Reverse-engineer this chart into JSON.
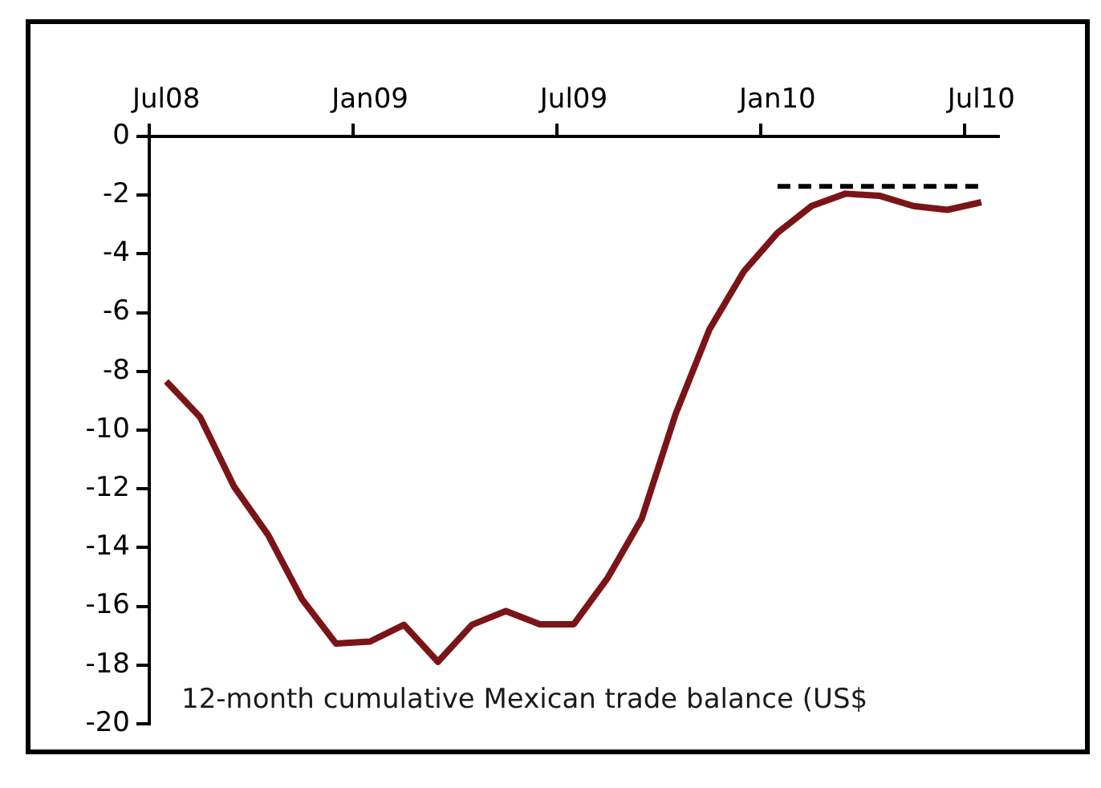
{
  "chart_data": {
    "type": "line",
    "categories": [
      "Jul08",
      null,
      null,
      null,
      null,
      null,
      "Jan09",
      null,
      null,
      null,
      null,
      null,
      "Jul09",
      null,
      null,
      null,
      null,
      null,
      "Jan10",
      null,
      null,
      null,
      null,
      null,
      "Jul10"
    ],
    "series": [
      {
        "color": "#7b1416",
        "values": [
          -8.34,
          -9.56,
          -11.93,
          -13.57,
          -15.76,
          -17.27,
          -17.2,
          -16.63,
          -17.89,
          -16.63,
          -16.16,
          -16.61,
          -16.61,
          -15.03,
          -13.02,
          -9.45,
          -6.56,
          -4.61,
          -3.28,
          -2.37,
          -1.95,
          -2.02,
          -2.37,
          -2.5,
          -2.24
        ]
      },
      {
        "color": "#000000",
        "line_style": "dashed",
        "values": [
          null,
          null,
          null,
          null,
          null,
          null,
          null,
          null,
          null,
          null,
          null,
          null,
          null,
          null,
          null,
          null,
          null,
          null,
          -1.7,
          -1.7,
          -1.7,
          -1.7,
          -1.7,
          -1.7,
          -1.7
        ]
      }
    ],
    "ylim": [
      -20,
      0
    ],
    "yticks": [
      0,
      -2,
      -4,
      -6,
      -8,
      -10,
      -12,
      -14,
      -16,
      -18,
      -20
    ],
    "grid": false,
    "legend": false,
    "marker": "none",
    "annotations": [
      "12-month cumulative Mexican trade balance (US$"
    ]
  }
}
